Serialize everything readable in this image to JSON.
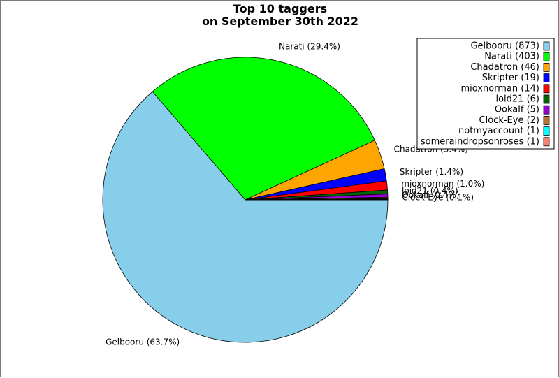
{
  "chart_data": {
    "type": "pie",
    "title": [
      "Top 10 taggers",
      "on September 30th 2022"
    ],
    "start_angle_deg": 0,
    "direction": "clockwise",
    "slices": [
      {
        "name": "Gelbooru",
        "value": 873,
        "label": "Gelbooru (63.7%)",
        "legend": "Gelbooru (873)",
        "color": "#87ceeb"
      },
      {
        "name": "Narati",
        "value": 403,
        "label": "Narati (29.4%)",
        "legend": "Narati (403)",
        "color": "#00ff00"
      },
      {
        "name": "Chadatron",
        "value": 46,
        "label": "Chadatron (3.4%)",
        "legend": "Chadatron (46)",
        "color": "#ffa500"
      },
      {
        "name": "Skripter",
        "value": 19,
        "label": "Skripter (1.4%)",
        "legend": "Skripter (19)",
        "color": "#0000ff"
      },
      {
        "name": "mioxnorman",
        "value": 14,
        "label": "mioxnorman (1.0%)",
        "legend": "mioxnorman (14)",
        "color": "#ff0000"
      },
      {
        "name": "loid21",
        "value": 6,
        "label": "loid21 (0.4%)",
        "legend": "loid21 (6)",
        "color": "#006400"
      },
      {
        "name": "Ookalf",
        "value": 5,
        "label": "Ookalf (0.4%)",
        "legend": "Ookalf (5)",
        "color": "#9400d3"
      },
      {
        "name": "Clock-Eye",
        "value": 2,
        "label": "Clock-Eye (0.1%)",
        "legend": "Clock-Eye (2)",
        "color": "#b8732e"
      },
      {
        "name": "notmyaccount",
        "value": 1,
        "label": "",
        "legend": "notmyaccount (1)",
        "color": "#00ffff"
      },
      {
        "name": "someraindropsonroses",
        "value": 1,
        "label": "",
        "legend": "someraindropsonroses (1)",
        "color": "#fa8072"
      }
    ],
    "legend_position": "top-right"
  }
}
